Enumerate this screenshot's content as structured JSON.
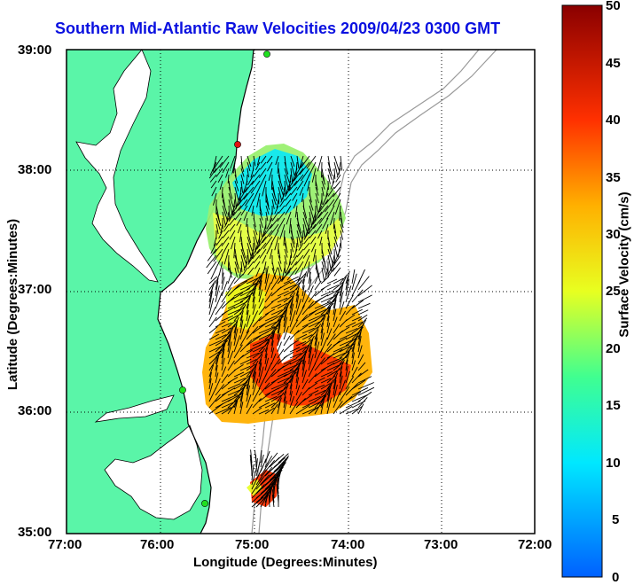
{
  "title": "Southern Mid-Atlantic Raw Velocities 2009/04/23 0300 GMT",
  "x_axis": {
    "label": "Longitude (Degrees:Minutes)",
    "ticks": [
      "77:00",
      "76:00",
      "75:00",
      "74:00",
      "73:00",
      "72:00"
    ]
  },
  "y_axis": {
    "label": "Latitude (Degrees:Minutes)",
    "ticks": [
      "39:00",
      "38:00",
      "37:00",
      "36:00",
      "35:00"
    ]
  },
  "colorbar": {
    "label": "Surface Velocity (cm/s)",
    "ticks": [
      "50",
      "45",
      "40",
      "35",
      "30",
      "25",
      "20",
      "15",
      "10",
      "5",
      "0"
    ],
    "min": 0,
    "max": 50
  },
  "colors": {
    "title": "#0a10e0",
    "land": "#5af5a8",
    "coast": "#000000",
    "bathymetry": "#9a9a9a",
    "station": "#20e020",
    "station_alt": "#e01010"
  },
  "chart_data": {
    "type": "map",
    "lon_range": [
      -77,
      -72
    ],
    "lat_range": [
      35,
      39
    ],
    "grid": true,
    "stations": [
      {
        "lon": -74.9,
        "lat": 38.98,
        "status": "active"
      },
      {
        "lon": -75.1,
        "lat": 38.23,
        "status": "alert"
      },
      {
        "lon": -75.8,
        "lat": 36.18,
        "status": "active"
      },
      {
        "lon": -75.5,
        "lat": 35.25,
        "status": "active"
      }
    ]
  }
}
